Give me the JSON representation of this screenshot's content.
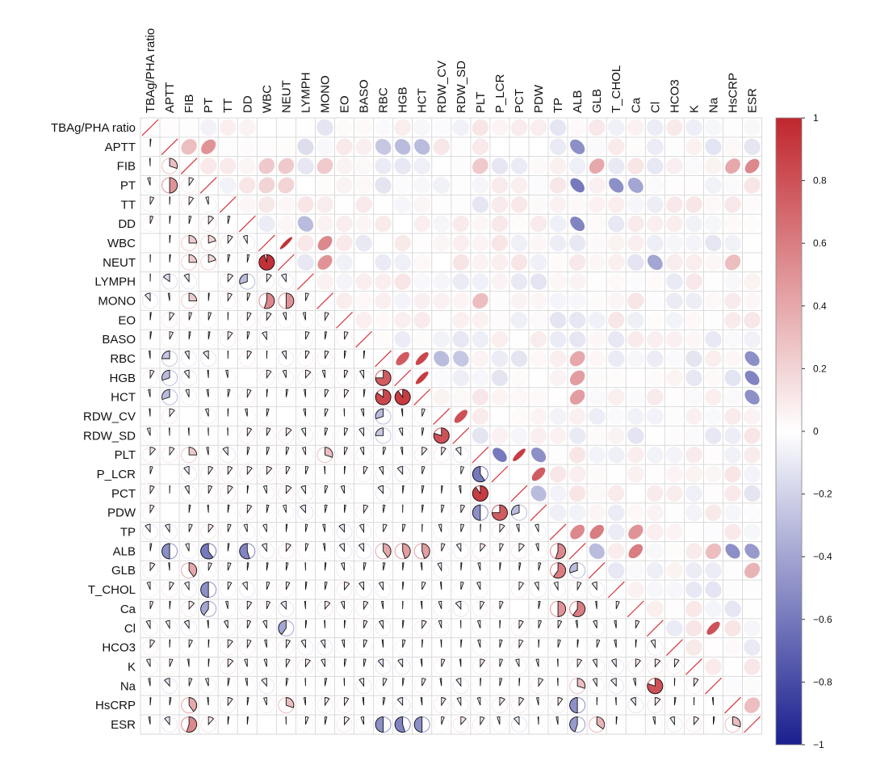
{
  "chart_data": {
    "type": "heatmap",
    "subtype": "mixed correlogram (upper triangle: ellipses, lower triangle: pies)",
    "variables": [
      "TBAg/PHA ratio",
      "APTT",
      "FIB",
      "PT",
      "TT",
      "DD",
      "WBC",
      "NEUT",
      "LYMPH",
      "MONO",
      "EO",
      "BASO",
      "RBC",
      "HGB",
      "HCT",
      "RDW_CV",
      "RDW_SD",
      "PLT",
      "P_LCR",
      "PCT",
      "PDW",
      "TP",
      "ALB",
      "GLB",
      "T_CHOL",
      "Ca",
      "Cl",
      "HCO3",
      "K",
      "Na",
      "HsCRP",
      "ESR"
    ],
    "strong_pairs": [
      {
        "a": "FIB",
        "b": "APTT",
        "r": 0.3
      },
      {
        "a": "PT",
        "b": "APTT",
        "r": 0.5
      },
      {
        "a": "PT",
        "b": "FIB",
        "r": 0.1
      },
      {
        "a": "WBC",
        "b": "FIB",
        "r": 0.25
      },
      {
        "a": "WBC",
        "b": "PT",
        "r": 0.2
      },
      {
        "a": "NEUT",
        "b": "FIB",
        "r": 0.25
      },
      {
        "a": "NEUT",
        "b": "PT",
        "r": 0.2
      },
      {
        "a": "NEUT",
        "b": "WBC",
        "r": 0.95
      },
      {
        "a": "MONO",
        "b": "WBC",
        "r": 0.55
      },
      {
        "a": "MONO",
        "b": "NEUT",
        "r": 0.5
      },
      {
        "a": "DD",
        "b": "LYMPH",
        "r": -0.3
      },
      {
        "a": "LYMPH",
        "b": "APTT",
        "r": -0.15
      },
      {
        "a": "MONO",
        "b": "FIB",
        "r": 0.25
      },
      {
        "a": "RBC",
        "b": "APTT",
        "r": -0.25
      },
      {
        "a": "HGB",
        "b": "APTT",
        "r": -0.3
      },
      {
        "a": "HCT",
        "b": "APTT",
        "r": -0.3
      },
      {
        "a": "HGB",
        "b": "RBC",
        "r": 0.75
      },
      {
        "a": "HCT",
        "b": "RBC",
        "r": 0.85
      },
      {
        "a": "HCT",
        "b": "HGB",
        "r": 0.9
      },
      {
        "a": "RDW_CV",
        "b": "RBC",
        "r": -0.3
      },
      {
        "a": "RDW_SD",
        "b": "RDW_CV",
        "r": 0.8
      },
      {
        "a": "RDW_SD",
        "b": "RBC",
        "r": -0.25
      },
      {
        "a": "PLT",
        "b": "FIB",
        "r": 0.25
      },
      {
        "a": "PLT",
        "b": "MONO",
        "r": 0.3
      },
      {
        "a": "P_LCR",
        "b": "PLT",
        "r": -0.6
      },
      {
        "a": "PCT",
        "b": "PLT",
        "r": 0.9
      },
      {
        "a": "PDW",
        "b": "PLT",
        "r": -0.5
      },
      {
        "a": "PDW",
        "b": "P_LCR",
        "r": 0.75
      },
      {
        "a": "PDW",
        "b": "PCT",
        "r": -0.3
      },
      {
        "a": "ALB",
        "b": "APTT",
        "r": -0.5
      },
      {
        "a": "ALB",
        "b": "PT",
        "r": -0.6
      },
      {
        "a": "ALB",
        "b": "DD",
        "r": -0.55
      },
      {
        "a": "ALB",
        "b": "TP",
        "r": 0.55
      },
      {
        "a": "ALB",
        "b": "RBC",
        "r": 0.4
      },
      {
        "a": "ALB",
        "b": "HGB",
        "r": 0.45
      },
      {
        "a": "ALB",
        "b": "HCT",
        "r": 0.45
      },
      {
        "a": "GLB",
        "b": "TP",
        "r": 0.6
      },
      {
        "a": "GLB",
        "b": "FIB",
        "r": 0.4
      },
      {
        "a": "GLB",
        "b": "ALB",
        "r": -0.3
      },
      {
        "a": "T_CHOL",
        "b": "PT",
        "r": -0.5
      },
      {
        "a": "Ca",
        "b": "ALB",
        "r": 0.6
      },
      {
        "a": "Ca",
        "b": "TP",
        "r": 0.5
      },
      {
        "a": "Ca",
        "b": "PT",
        "r": -0.4
      },
      {
        "a": "Cl",
        "b": "NEUT",
        "r": -0.4
      },
      {
        "a": "Na",
        "b": "Cl",
        "r": 0.8
      },
      {
        "a": "Na",
        "b": "ALB",
        "r": 0.3
      },
      {
        "a": "HsCRP",
        "b": "ALB",
        "r": -0.5
      },
      {
        "a": "HsCRP",
        "b": "FIB",
        "r": 0.4
      },
      {
        "a": "HsCRP",
        "b": "NEUT",
        "r": 0.3
      },
      {
        "a": "ESR",
        "b": "FIB",
        "r": 0.55
      },
      {
        "a": "ESR",
        "b": "RBC",
        "r": -0.5
      },
      {
        "a": "ESR",
        "b": "HGB",
        "r": -0.55
      },
      {
        "a": "ESR",
        "b": "HCT",
        "r": -0.5
      },
      {
        "a": "ESR",
        "b": "ALB",
        "r": -0.45
      },
      {
        "a": "ESR",
        "b": "GLB",
        "r": 0.35
      },
      {
        "a": "ESR",
        "b": "HsCRP",
        "r": 0.3
      }
    ],
    "colorbar": {
      "ticks": [
        1,
        0.8,
        0.6,
        0.4,
        0.2,
        0,
        -0.2,
        -0.4,
        -0.6,
        -0.8,
        -1
      ],
      "tick_labels": [
        "1",
        "0.8",
        "0.6",
        "0.4",
        "0.2",
        "0",
        "−0.2",
        "−0.4",
        "−0.6",
        "−0.8",
        "−1"
      ],
      "range": [
        -1,
        1
      ]
    },
    "colors": {
      "positive": "#c0262d",
      "neutral": "#ffffff",
      "negative": "#1a1f8f",
      "grid": "#d9d9d9",
      "diagonal": "#d7303a"
    }
  }
}
